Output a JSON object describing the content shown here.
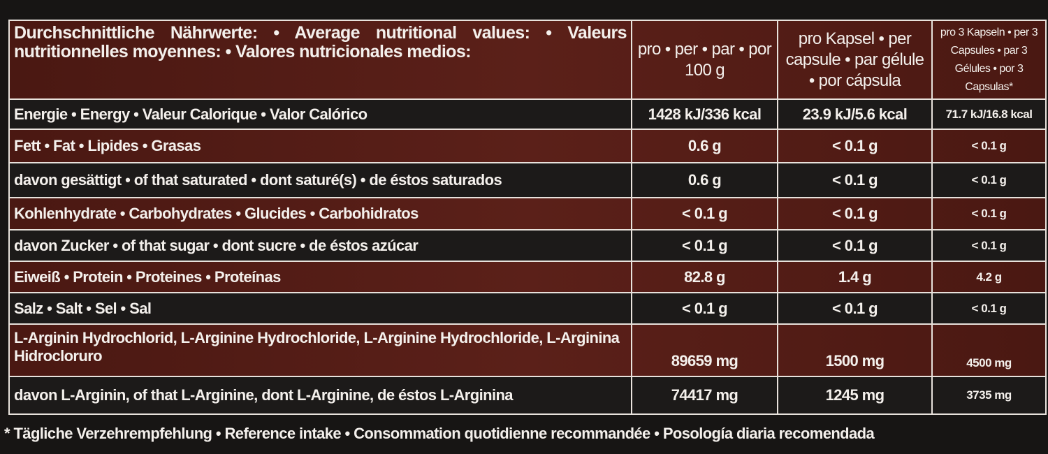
{
  "table": {
    "header": [
      "Durchschnittliche Nährwerte: • Average nutritional values: • Valeurs nutritionnelles moyennes: • Valores nutricionales medios:",
      "pro • per • par • por 100 g",
      "pro Kapsel • per capsule • par gélule • por cápsula",
      "pro 3 Kapseln • per 3 Capsules • par 3 Gélules • por 3 Capsulas*"
    ],
    "rows": [
      [
        "Energie • Energy • Valeur Calorique • Valor Calórico",
        "1428 kJ/336 kcal",
        "23.9 kJ/5.6 kcal",
        "71.7 kJ/16.8 kcal"
      ],
      [
        "Fett • Fat • Lipides • Grasas",
        "0.6 g",
        "< 0.1 g",
        "< 0.1 g"
      ],
      [
        "davon gesättigt • of that saturated • dont saturé(s) • de éstos saturados",
        "0.6 g",
        "< 0.1 g",
        "< 0.1 g"
      ],
      [
        "Kohlenhydrate • Carbohydrates • Glucides • Carbohidratos",
        "< 0.1 g",
        "< 0.1 g",
        "< 0.1 g"
      ],
      [
        "davon Zucker • of that sugar • dont sucre • de éstos azúcar",
        "< 0.1 g",
        "< 0.1 g",
        "< 0.1 g"
      ],
      [
        "Eiweiß • Protein • Proteines • Proteínas",
        "82.8 g",
        "1.4 g",
        "4.2 g"
      ],
      [
        "Salz • Salt • Sel • Sal",
        "< 0.1 g",
        "< 0.1 g",
        "< 0.1 g"
      ],
      [
        "L-Arginin Hydrochlorid, L-Arginine Hydrochloride, L-Arginine Hydrochloride, L-Arginina Hidrocloruro",
        "89659 mg",
        "1500 mg",
        "4500 mg"
      ],
      [
        "davon L-Arginin, of that L-Arginine, dont L-Arginine, de éstos L-Arginina",
        "74417 mg",
        "1245 mg",
        "3735 mg"
      ]
    ]
  },
  "footnote": "* Tägliche Verzehrempfehlung • Reference intake • Consommation quotidienne recommandée • Posología diaria recomendada"
}
